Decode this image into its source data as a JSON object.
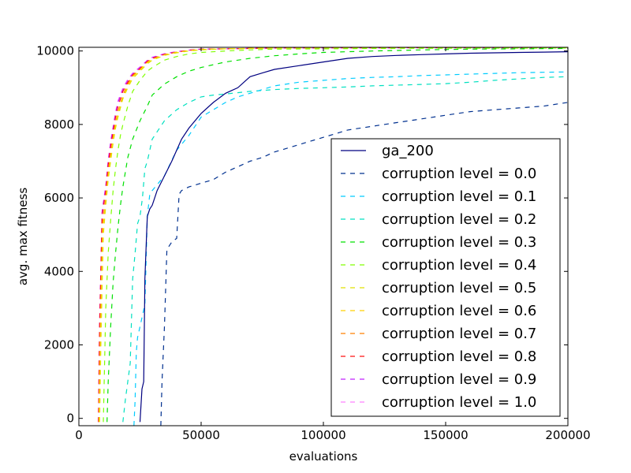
{
  "chart_data": {
    "type": "line",
    "xlabel": "evaluations",
    "ylabel": "avg. max fitness",
    "xlim": [
      0,
      200000
    ],
    "ylim": [
      -200,
      10100
    ],
    "x_ticks": [
      0,
      50000,
      100000,
      150000,
      200000
    ],
    "y_ticks": [
      0,
      2000,
      4000,
      6000,
      8000,
      10000
    ],
    "x_tick_labels": [
      "0",
      "50000",
      "100000",
      "150000",
      "200000"
    ],
    "y_tick_labels": [
      "0",
      "2000",
      "4000",
      "6000",
      "8000",
      "10000"
    ],
    "grid": false,
    "legend_position": "lower right",
    "series": [
      {
        "name": "ga_200",
        "color": "#000080",
        "dash": "solid",
        "x": [
          25000,
          25800,
          26500,
          27000,
          27800,
          28000,
          29000,
          30000,
          32000,
          35000,
          38000,
          40000,
          42000,
          45000,
          50000,
          55000,
          60000,
          65000,
          70000,
          75000,
          80000,
          90000,
          100000,
          110000,
          120000,
          130000,
          140000,
          150000,
          160000,
          170000,
          180000,
          190000,
          200000
        ],
        "y": [
          -100,
          800,
          1000,
          3800,
          5200,
          5500,
          5700,
          5800,
          6200,
          6600,
          7000,
          7300,
          7600,
          7900,
          8300,
          8600,
          8850,
          9000,
          9300,
          9400,
          9500,
          9600,
          9700,
          9800,
          9850,
          9880,
          9900,
          9920,
          9940,
          9950,
          9960,
          9970,
          9980
        ]
      },
      {
        "name": "corruption level = 0.0",
        "color": "#00308f",
        "dash": "dashed",
        "x": [
          33500,
          34000,
          35000,
          36000,
          37000,
          38000,
          39000,
          40000,
          41000,
          42000,
          45000,
          50000,
          55000,
          60000,
          65000,
          70000,
          75000,
          80000,
          85000,
          90000,
          95000,
          100000,
          110000,
          120000,
          130000,
          140000,
          150000,
          160000,
          170000,
          180000,
          190000,
          200000
        ],
        "y": [
          -200,
          1000,
          2500,
          4600,
          4700,
          4800,
          4850,
          4900,
          6100,
          6200,
          6300,
          6400,
          6500,
          6700,
          6850,
          7000,
          7100,
          7250,
          7350,
          7450,
          7550,
          7650,
          7850,
          7950,
          8050,
          8150,
          8250,
          8350,
          8400,
          8450,
          8500,
          8600
        ]
      },
      {
        "name": "corruption level = 0.1",
        "color": "#00ccff",
        "dash": "dashed",
        "x": [
          22500,
          23000,
          23500,
          24000,
          25000,
          26000,
          27000,
          28000,
          29000,
          30000,
          35000,
          40000,
          45000,
          50000,
          55000,
          60000,
          65000,
          70000,
          75000,
          80000,
          90000,
          100000,
          110000,
          120000,
          130000,
          140000,
          150000,
          160000,
          170000,
          180000,
          190000,
          200000
        ],
        "y": [
          -200,
          500,
          1800,
          2200,
          2500,
          2800,
          3100,
          5500,
          6100,
          6200,
          6600,
          7300,
          7700,
          8200,
          8400,
          8600,
          8750,
          8850,
          8950,
          9050,
          9150,
          9200,
          9250,
          9280,
          9300,
          9330,
          9350,
          9370,
          9390,
          9410,
          9420,
          9430
        ]
      },
      {
        "name": "corruption level = 0.2",
        "color": "#00e0c0",
        "dash": "dashed",
        "x": [
          18000,
          19000,
          20000,
          21000,
          22000,
          23000,
          24000,
          25000,
          26000,
          27000,
          28000,
          30000,
          32000,
          35000,
          40000,
          45000,
          50000,
          55000,
          60000,
          70000,
          80000,
          90000,
          100000,
          110000,
          120000,
          130000,
          140000,
          150000,
          160000,
          170000,
          180000,
          190000,
          200000
        ],
        "y": [
          -100,
          500,
          1000,
          1500,
          3800,
          4500,
          5300,
          5500,
          6000,
          6800,
          7000,
          7600,
          7800,
          8100,
          8400,
          8600,
          8750,
          8800,
          8830,
          8900,
          8950,
          8980,
          9000,
          9020,
          9050,
          9070,
          9090,
          9110,
          9150,
          9200,
          9240,
          9280,
          9300
        ]
      },
      {
        "name": "corruption level = 0.3",
        "color": "#00e000",
        "dash": "dashed",
        "x": [
          11500,
          12000,
          13000,
          14000,
          15000,
          16000,
          17000,
          18000,
          19000,
          20000,
          22000,
          25000,
          28000,
          30000,
          35000,
          40000,
          45000,
          50000,
          60000,
          70000,
          80000,
          90000,
          100000,
          120000,
          140000,
          160000,
          180000,
          200000
        ],
        "y": [
          -100,
          1000,
          2500,
          3700,
          4500,
          5200,
          5800,
          6300,
          6700,
          7100,
          7600,
          8100,
          8500,
          8800,
          9100,
          9300,
          9450,
          9550,
          9700,
          9800,
          9870,
          9920,
          9960,
          10000,
          10030,
          10050,
          10060,
          10070
        ]
      },
      {
        "name": "corruption level = 0.4",
        "color": "#80ff00",
        "dash": "dashed",
        "x": [
          10000,
          10500,
          11000,
          12000,
          13000,
          14000,
          15000,
          16000,
          17000,
          18000,
          20000,
          22000,
          25000,
          28000,
          30000,
          35000,
          40000,
          45000,
          50000,
          60000,
          70000,
          80000,
          100000,
          120000,
          150000,
          200000
        ],
        "y": [
          -100,
          1500,
          3000,
          4500,
          5400,
          6200,
          6800,
          7300,
          7700,
          8000,
          8500,
          8900,
          9200,
          9450,
          9550,
          9750,
          9850,
          9920,
          9960,
          10000,
          10030,
          10050,
          10060,
          10070,
          10075,
          10080
        ]
      },
      {
        "name": "corruption level = 0.5",
        "color": "#e0e000",
        "dash": "dashed",
        "x": [
          8500,
          9000,
          9500,
          10000,
          11000,
          12000,
          13000,
          14000,
          15000,
          16000,
          18000,
          20000,
          22000,
          25000,
          28000,
          30000,
          35000,
          40000,
          45000,
          50000,
          60000,
          70000,
          80000,
          100000,
          150000,
          200000
        ],
        "y": [
          -100,
          2000,
          3500,
          5000,
          5800,
          6500,
          7000,
          7500,
          7900,
          8200,
          8700,
          9000,
          9250,
          9450,
          9650,
          9750,
          9880,
          9950,
          10000,
          10030,
          10060,
          10070,
          10080,
          10085,
          10090,
          10090
        ]
      },
      {
        "name": "corruption level = 0.6",
        "color": "#ffd000",
        "dash": "dashed",
        "x": [
          8300,
          8800,
          9300,
          9800,
          11000,
          12000,
          13000,
          14000,
          15000,
          16000,
          18000,
          20000,
          22000,
          25000,
          28000,
          30000,
          35000,
          40000,
          45000,
          50000,
          60000,
          70000,
          80000,
          100000,
          150000,
          200000
        ],
        "y": [
          -100,
          2200,
          3700,
          5200,
          5900,
          6600,
          7100,
          7600,
          8000,
          8300,
          8750,
          9050,
          9300,
          9480,
          9680,
          9770,
          9890,
          9960,
          10010,
          10040,
          10060,
          10070,
          10080,
          10085,
          10090,
          10090
        ]
      },
      {
        "name": "corruption level = 0.7",
        "color": "#ff8000",
        "dash": "dashed",
        "x": [
          8200,
          8700,
          9200,
          9700,
          11000,
          12000,
          13000,
          14000,
          15000,
          16000,
          18000,
          20000,
          22000,
          25000,
          28000,
          30000,
          35000,
          40000,
          45000,
          50000,
          60000,
          70000,
          80000,
          100000,
          150000,
          200000
        ],
        "y": [
          -100,
          2300,
          3800,
          5300,
          6000,
          6700,
          7200,
          7650,
          8050,
          8350,
          8800,
          9100,
          9330,
          9500,
          9700,
          9780,
          9900,
          9970,
          10010,
          10040,
          10060,
          10070,
          10080,
          10085,
          10090,
          10090
        ]
      },
      {
        "name": "corruption level = 0.8",
        "color": "#ff1010",
        "dash": "dashed",
        "x": [
          8000,
          8500,
          9000,
          9500,
          11000,
          12000,
          13000,
          14000,
          15000,
          16000,
          18000,
          20000,
          22000,
          25000,
          28000,
          30000,
          35000,
          40000,
          45000,
          50000,
          60000,
          70000,
          80000,
          100000,
          150000,
          200000
        ],
        "y": [
          -100,
          2500,
          4000,
          5500,
          6200,
          6900,
          7400,
          7800,
          8200,
          8500,
          8900,
          9150,
          9350,
          9520,
          9720,
          9800,
          9910,
          9970,
          10020,
          10050,
          10060,
          10070,
          10080,
          10085,
          10090,
          10090
        ]
      },
      {
        "name": "corruption level = 0.9",
        "color": "#c020ff",
        "dash": "dashed",
        "x": [
          8000,
          8500,
          9000,
          9500,
          11000,
          12000,
          13000,
          14000,
          15000,
          16000,
          18000,
          20000,
          22000,
          25000,
          28000,
          30000,
          35000,
          40000,
          45000,
          50000,
          60000,
          70000,
          80000,
          100000,
          150000,
          200000
        ],
        "y": [
          -100,
          2600,
          4100,
          5600,
          6300,
          7000,
          7500,
          7900,
          8300,
          8600,
          8950,
          9200,
          9380,
          9550,
          9740,
          9820,
          9920,
          9980,
          10020,
          10050,
          10060,
          10070,
          10080,
          10085,
          10090,
          10090
        ]
      },
      {
        "name": "corruption level = 1.0",
        "color": "#ff80ff",
        "dash": "dashed",
        "x": [
          8000,
          8500,
          9000,
          9500,
          11000,
          12000,
          13000,
          14000,
          15000,
          16000,
          18000,
          20000,
          22000,
          25000,
          28000,
          30000,
          35000,
          40000,
          45000,
          50000,
          60000,
          70000,
          80000,
          100000,
          150000,
          200000
        ],
        "y": [
          -100,
          2650,
          4150,
          5650,
          6350,
          7050,
          7550,
          7950,
          8350,
          8650,
          9000,
          9230,
          9400,
          9570,
          9750,
          9830,
          9930,
          9985,
          10025,
          10050,
          10060,
          10070,
          10080,
          10085,
          10090,
          10090
        ]
      }
    ]
  }
}
